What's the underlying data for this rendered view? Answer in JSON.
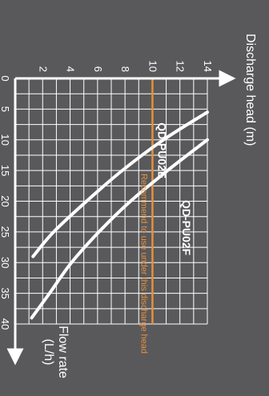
{
  "colors": {
    "background": "#59595b",
    "grid": "#ffffff",
    "curve": "#ffffff",
    "recommend": "#e8903a",
    "text": "#ffffff"
  },
  "chart_data": {
    "type": "line",
    "title": "",
    "xlabel": "Flow rate (L/h)",
    "ylabel": "Discharge head (m)",
    "xlim": [
      0,
      40
    ],
    "ylim": [
      0,
      14
    ],
    "x_ticks": [
      "0",
      "5",
      "10",
      "15",
      "20",
      "25",
      "30",
      "35",
      "40"
    ],
    "y_ticks": [
      "2",
      "4",
      "6",
      "8",
      "10",
      "12",
      "14"
    ],
    "grid": true,
    "series": [
      {
        "name": "QD-PU02E",
        "x": [
          5.5,
          10,
          15,
          20,
          25,
          29
        ],
        "y": [
          14,
          10.8,
          7.8,
          5.2,
          2.8,
          1.3
        ]
      },
      {
        "name": "QD-PU02F",
        "x": [
          10,
          15,
          20,
          25,
          30,
          35,
          39
        ],
        "y": [
          14,
          11.1,
          8.4,
          6.1,
          4.1,
          2.5,
          1.2
        ]
      }
    ],
    "annotations": [
      {
        "text": "Recommend to use under this discharge head",
        "y": 10
      }
    ]
  }
}
